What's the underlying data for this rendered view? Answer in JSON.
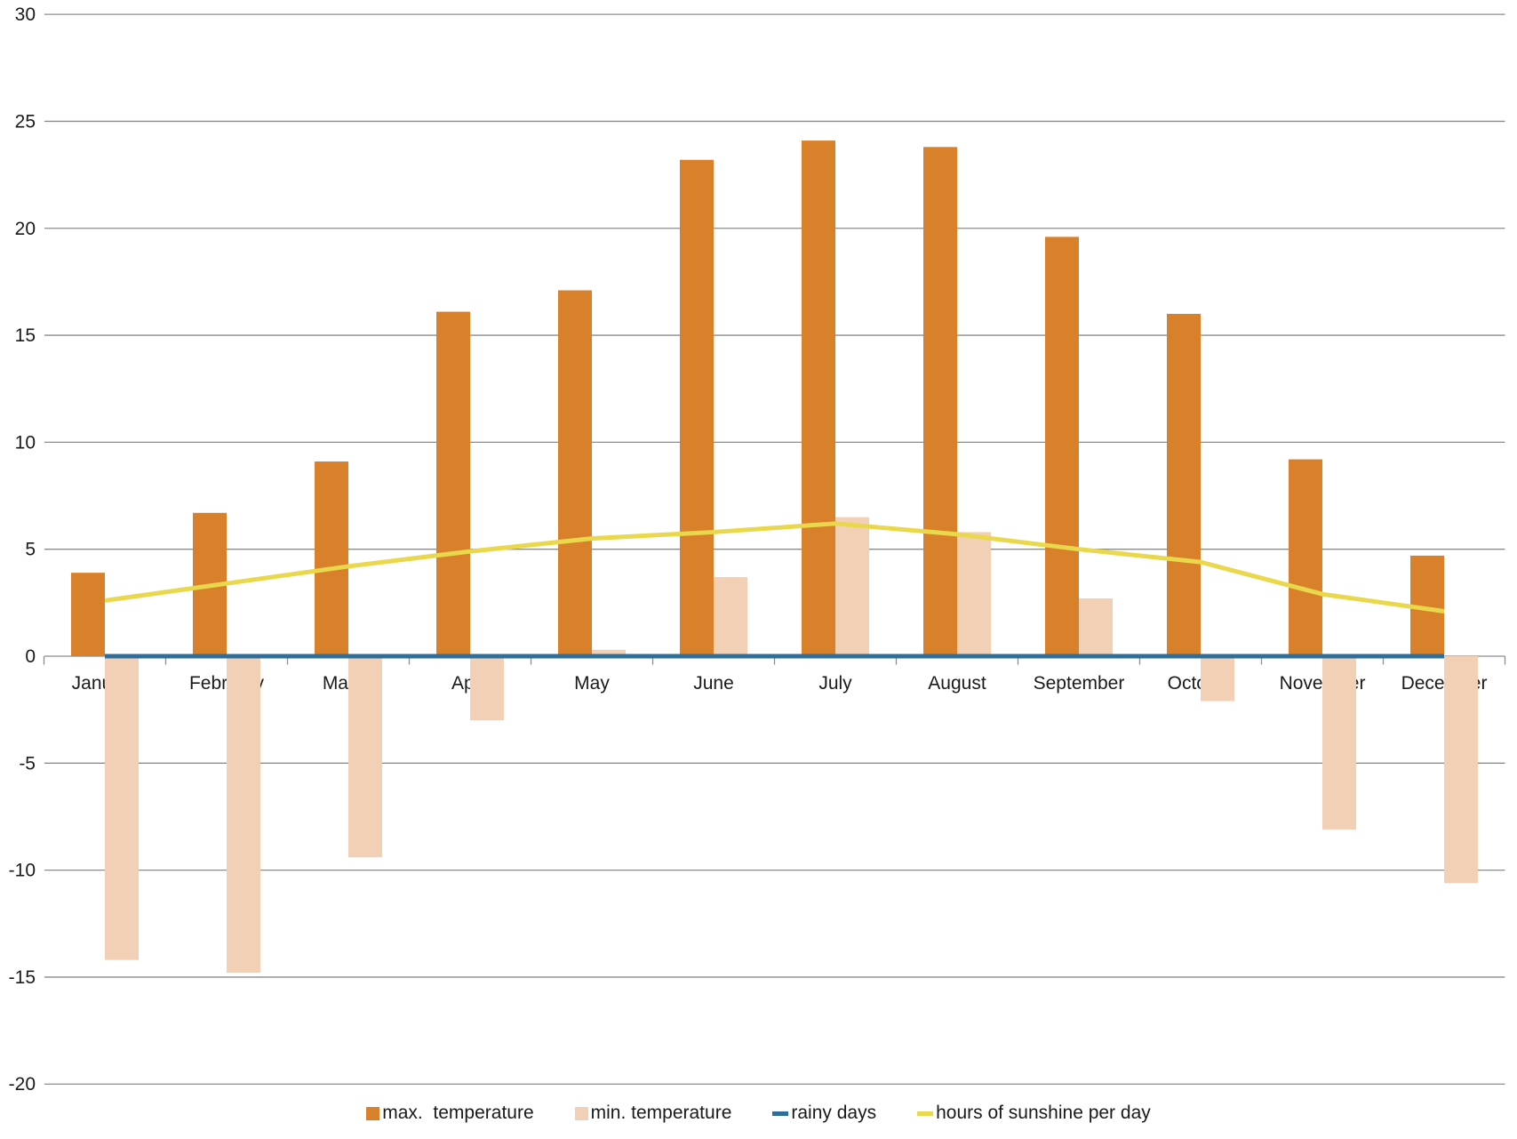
{
  "chart_data": {
    "type": "bar",
    "subtype": "combo-bar-line",
    "title": "",
    "xlabel": "",
    "ylabel": "",
    "categories": [
      "January",
      "February",
      "March",
      "April",
      "May",
      "June",
      "July",
      "August",
      "September",
      "October",
      "November",
      "December"
    ],
    "series": [
      {
        "name": "max.  temperature",
        "type": "bar",
        "color": "#D8802A",
        "values": [
          3.9,
          6.7,
          9.1,
          16.1,
          17.1,
          23.2,
          24.1,
          23.8,
          19.6,
          16.0,
          9.2,
          4.7
        ]
      },
      {
        "name": "min. temperature",
        "type": "bar",
        "color": "#F2D0B5",
        "values": [
          -14.2,
          -14.8,
          -9.4,
          -3.0,
          0.3,
          3.7,
          6.5,
          5.8,
          2.7,
          -2.1,
          -8.1,
          -10.6
        ]
      },
      {
        "name": "rainy days",
        "type": "line",
        "color": "#2E6E99",
        "values": [
          0,
          0,
          0,
          0,
          0,
          0,
          0,
          0,
          0,
          0,
          0,
          0
        ]
      },
      {
        "name": "hours of sunshine per day",
        "type": "line",
        "color": "#E9D74C",
        "values": [
          2.6,
          3.4,
          4.2,
          4.9,
          5.5,
          5.8,
          6.2,
          5.7,
          5.0,
          4.4,
          2.9,
          2.1
        ]
      }
    ],
    "ylim": [
      -20,
      30
    ],
    "y_tick_step": 5,
    "y_ticks": [
      30,
      25,
      20,
      15,
      10,
      5,
      0,
      -5,
      -10,
      -15,
      -20
    ],
    "grid": true,
    "legend_position": "bottom",
    "grid_color": "#8C8C8C",
    "text_color": "#1A1A1A",
    "background_color": "#FFFFFF"
  }
}
